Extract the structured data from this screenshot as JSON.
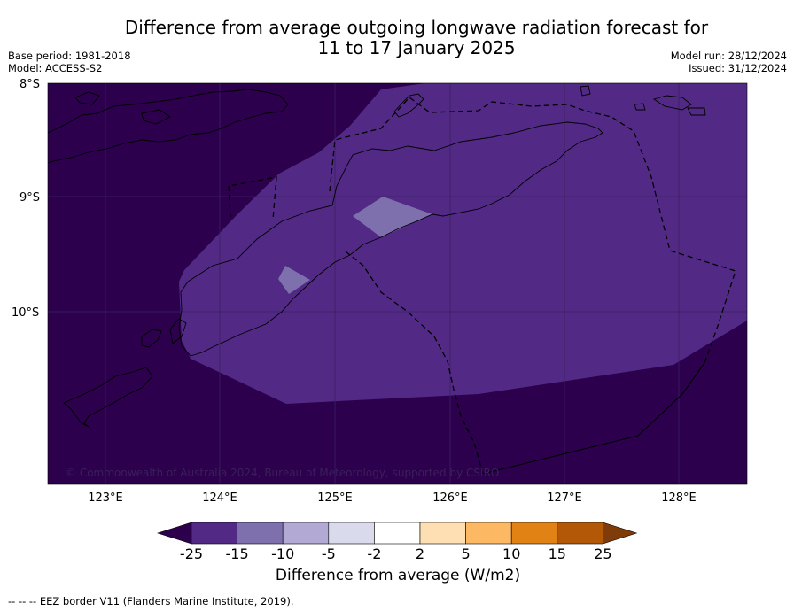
{
  "title_line1": "Difference from average outgoing longwave radiation forecast for",
  "title_line2": "11 to 17 January 2025",
  "meta_left": [
    "Base period: 1981-2018",
    "Model: ACCESS-S2"
  ],
  "meta_right": [
    "Model run: 28/12/2024",
    "Issued: 31/12/2024"
  ],
  "lat_labels": [
    "8°S",
    "9°S",
    "10°S"
  ],
  "lon_labels": [
    "123°E",
    "124°E",
    "125°E",
    "126°E",
    "127°E",
    "128°E"
  ],
  "copyright": "© Commonwealth of Australia 2024, Bureau of Meteorology, supported by CSIRO",
  "colorbar": {
    "ticks": [
      "-25",
      "-15",
      "-10",
      "-5",
      "-2",
      "2",
      "5",
      "10",
      "15",
      "25"
    ],
    "colors": [
      "#522a86",
      "#7e70ad",
      "#b2aad4",
      "#d9daec",
      "#ffffff",
      "#fedfb3",
      "#fdb863",
      "#e08214",
      "#b35807"
    ],
    "under_color": "#2c004c",
    "over_color": "#7f3b08",
    "title": "Difference from average (W/m2)"
  },
  "legend_footer": "--  --  -- EEZ border V11 (Flanders Marine Institute, 2019).",
  "field_colors": {
    "deep": "#2c004c",
    "medium": "#522a86",
    "light": "#7e70ad"
  }
}
